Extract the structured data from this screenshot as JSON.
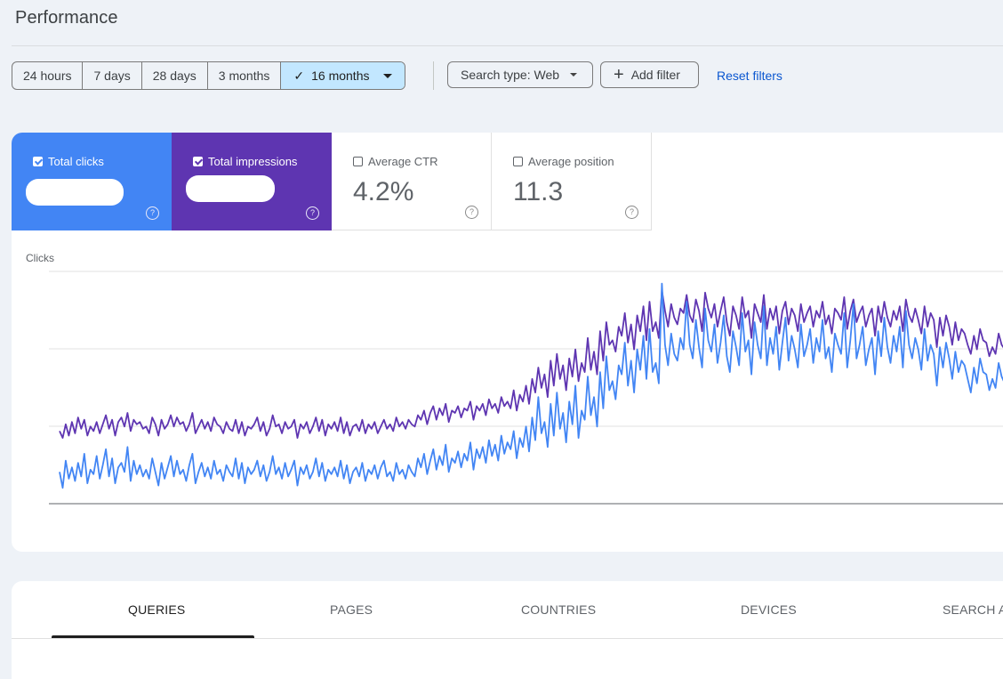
{
  "page": {
    "title": "Performance"
  },
  "filters": {
    "date_ranges": [
      "24 hours",
      "7 days",
      "28 days",
      "3 months",
      "16 months"
    ],
    "active_range": "16 months",
    "search_type": "Search type: Web",
    "add_filter": "Add filter",
    "reset": "Reset filters"
  },
  "metrics": {
    "clicks": {
      "label": "Total clicks",
      "checked": true,
      "value_redacted": true,
      "color": "#4285f4"
    },
    "impressions": {
      "label": "Total impressions",
      "checked": true,
      "value_redacted": true,
      "color": "#5e35b1"
    },
    "ctr": {
      "label": "Average CTR",
      "checked": false,
      "value": "4.2%"
    },
    "position": {
      "label": "Average position",
      "checked": false,
      "value": "11.3"
    }
  },
  "chart_data": {
    "type": "line",
    "ylabel": "Clicks",
    "grid": true,
    "series": [
      {
        "color": "#4285f4",
        "values": [
          14,
          7,
          19,
          11,
          16,
          10,
          18,
          12,
          22,
          9,
          15,
          13,
          21,
          11,
          17,
          24,
          12,
          20,
          9,
          16,
          18,
          14,
          25,
          10,
          19,
          13,
          17,
          12,
          15,
          11,
          20,
          14,
          8,
          18,
          11,
          16,
          21,
          12,
          19,
          13,
          15,
          10,
          17,
          22,
          9,
          14,
          18,
          12,
          16,
          11,
          19,
          13,
          15,
          10,
          17,
          14,
          12,
          20,
          11,
          18,
          9,
          16,
          13,
          15,
          19,
          12,
          17,
          10,
          14,
          21,
          13,
          16,
          11,
          18,
          12,
          15,
          19,
          8,
          16,
          13,
          17,
          11,
          14,
          20,
          12,
          18,
          10,
          15,
          13,
          16,
          12,
          19,
          11,
          17,
          9,
          14,
          16,
          12,
          18,
          10,
          15,
          13,
          17,
          11,
          16,
          19,
          12,
          14,
          10,
          18,
          13,
          15,
          11,
          17,
          14,
          12,
          20,
          16,
          22,
          13,
          19,
          24,
          15,
          21,
          17,
          26,
          14,
          20,
          18,
          23,
          16,
          22,
          19,
          27,
          15,
          24,
          20,
          25,
          18,
          28,
          21,
          26,
          19,
          30,
          22,
          27,
          24,
          32,
          20,
          29,
          25,
          34,
          23,
          38,
          28,
          47,
          31,
          36,
          25,
          44,
          30,
          49,
          33,
          40,
          27,
          45,
          35,
          52,
          29,
          41,
          37,
          56,
          39,
          47,
          34,
          58,
          42,
          65,
          50,
          54,
          46,
          61,
          57,
          71,
          52,
          63,
          49,
          68,
          59,
          74,
          55,
          77,
          58,
          62,
          53,
          97,
          70,
          61,
          75,
          66,
          63,
          73,
          68,
          89,
          70,
          64,
          81,
          69,
          60,
          86,
          72,
          67,
          79,
          62,
          71,
          83,
          65,
          58,
          76,
          69,
          61,
          84,
          67,
          72,
          57,
          80,
          70,
          64,
          87,
          61,
          73,
          66,
          78,
          59,
          71,
          82,
          63,
          74,
          68,
          60,
          79,
          65,
          70,
          77,
          62,
          73,
          67,
          81,
          64,
          69,
          58,
          75,
          70,
          66,
          84,
          60,
          72,
          88,
          64,
          70,
          78,
          61,
          68,
          73,
          57,
          76,
          65,
          82,
          69,
          62,
          74,
          67,
          78,
          60,
          85,
          70,
          64,
          73,
          68,
          59,
          77,
          63,
          70,
          66,
          52,
          69,
          60,
          71,
          64,
          55,
          67,
          58,
          63,
          61,
          55,
          49,
          60,
          53,
          64,
          58,
          57,
          50,
          55,
          51,
          62,
          56,
          53
        ]
      },
      {
        "color": "#5e35b1",
        "values": [
          32,
          29,
          35,
          30,
          36,
          31,
          38,
          33,
          37,
          30,
          34,
          32,
          36,
          31,
          35,
          39,
          33,
          37,
          30,
          36,
          38,
          34,
          40,
          32,
          37,
          35,
          36,
          33,
          34,
          31,
          38,
          35,
          30,
          37,
          33,
          35,
          39,
          34,
          38,
          35,
          36,
          32,
          35,
          40,
          31,
          34,
          37,
          33,
          36,
          32,
          38,
          35,
          34,
          31,
          36,
          33,
          32,
          37,
          31,
          36,
          30,
          34,
          33,
          35,
          38,
          32,
          36,
          30,
          33,
          39,
          34,
          35,
          31,
          36,
          33,
          34,
          37,
          29,
          35,
          33,
          36,
          31,
          34,
          38,
          32,
          37,
          30,
          35,
          33,
          36,
          32,
          38,
          31,
          36,
          30,
          34,
          35,
          32,
          37,
          31,
          35,
          33,
          36,
          31,
          34,
          37,
          33,
          35,
          32,
          38,
          34,
          36,
          33,
          37,
          35,
          34,
          39,
          37,
          41,
          35,
          40,
          43,
          37,
          42,
          39,
          44,
          36,
          41,
          40,
          43,
          38,
          42,
          41,
          45,
          37,
          43,
          41,
          44,
          39,
          46,
          42,
          44,
          40,
          47,
          43,
          45,
          42,
          50,
          41,
          48,
          45,
          52,
          44,
          55,
          49,
          60,
          51,
          57,
          47,
          63,
          52,
          66,
          55,
          61,
          50,
          64,
          56,
          68,
          54,
          62,
          58,
          73,
          59,
          67,
          57,
          76,
          63,
          80,
          70,
          72,
          67,
          78,
          74,
          84,
          71,
          79,
          68,
          83,
          76,
          87,
          72,
          89,
          76,
          80,
          73,
          94,
          85,
          78,
          88,
          82,
          79,
          86,
          84,
          92,
          83,
          80,
          90,
          85,
          76,
          93,
          86,
          82,
          88,
          78,
          85,
          91,
          80,
          74,
          87,
          83,
          77,
          91,
          82,
          85,
          73,
          88,
          84,
          80,
          92,
          77,
          86,
          81,
          87,
          75,
          85,
          89,
          79,
          86,
          83,
          76,
          88,
          80,
          84,
          87,
          78,
          85,
          82,
          89,
          79,
          83,
          75,
          86,
          84,
          81,
          91,
          77,
          85,
          90,
          80,
          84,
          87,
          78,
          83,
          86,
          74,
          87,
          80,
          89,
          82,
          78,
          85,
          81,
          87,
          76,
          90,
          83,
          80,
          86,
          81,
          75,
          87,
          78,
          84,
          81,
          69,
          82,
          74,
          83,
          78,
          70,
          80,
          72,
          77,
          75,
          70,
          66,
          74,
          68,
          77,
          72,
          71,
          65,
          69,
          66,
          75,
          70,
          68
        ]
      }
    ]
  },
  "tabs": [
    "QUERIES",
    "PAGES",
    "COUNTRIES",
    "DEVICES",
    "SEARCH A"
  ]
}
